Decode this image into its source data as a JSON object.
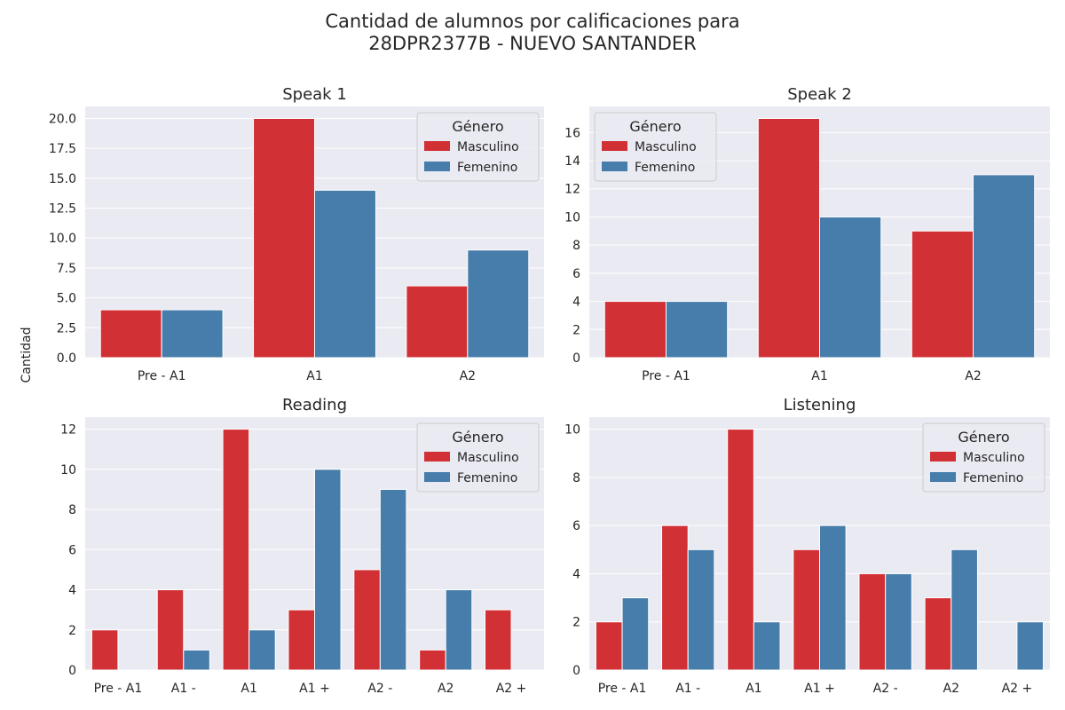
{
  "figure": {
    "title_line1": "Cantidad de alumnos por calificaciones para",
    "title_line2": "28DPR2377B - NUEVO SANTANDER",
    "shared_ylabel": "Cantidad"
  },
  "colors": {
    "Masculino": "#d13034",
    "Femenino": "#467daa",
    "plot_bg": "#eaeaf2",
    "grid": "#ffffff"
  },
  "chart_data": [
    {
      "type": "bar",
      "title": "Speak 1",
      "categories": [
        "Pre - A1",
        "A1",
        "A2"
      ],
      "series": [
        {
          "name": "Masculino",
          "values": [
            4,
            20,
            6
          ]
        },
        {
          "name": "Femenino",
          "values": [
            4,
            14,
            9
          ]
        }
      ],
      "ylim": [
        0,
        21
      ],
      "yticks": [
        "0.0",
        "2.5",
        "5.0",
        "7.5",
        "10.0",
        "12.5",
        "15.0",
        "17.5",
        "20.0"
      ],
      "legend": {
        "title": "Género",
        "placement": "upper right"
      },
      "grid": true
    },
    {
      "type": "bar",
      "title": "Speak 2",
      "categories": [
        "Pre - A1",
        "A1",
        "A2"
      ],
      "series": [
        {
          "name": "Masculino",
          "values": [
            4,
            17,
            9
          ]
        },
        {
          "name": "Femenino",
          "values": [
            4,
            10,
            13
          ]
        }
      ],
      "ylim": [
        0,
        17.85
      ],
      "yticks": [
        "0",
        "2",
        "4",
        "6",
        "8",
        "10",
        "12",
        "14",
        "16"
      ],
      "legend": {
        "title": "Género",
        "placement": "upper left"
      },
      "grid": true
    },
    {
      "type": "bar",
      "title": "Reading",
      "categories": [
        "Pre - A1",
        "A1 -",
        "A1",
        "A1 +",
        "A2 -",
        "A2",
        "A2 +"
      ],
      "series": [
        {
          "name": "Masculino",
          "values": [
            2,
            4,
            12,
            3,
            5,
            1,
            3
          ]
        },
        {
          "name": "Femenino",
          "values": [
            0,
            1,
            2,
            10,
            9,
            4,
            0
          ]
        }
      ],
      "ylim": [
        0,
        12.6
      ],
      "yticks": [
        "0",
        "2",
        "4",
        "6",
        "8",
        "10",
        "12"
      ],
      "legend": {
        "title": "Género",
        "placement": "upper right"
      },
      "grid": true
    },
    {
      "type": "bar",
      "title": "Listening",
      "categories": [
        "Pre - A1",
        "A1 -",
        "A1",
        "A1 +",
        "A2 -",
        "A2",
        "A2 +"
      ],
      "series": [
        {
          "name": "Masculino",
          "values": [
            2,
            6,
            10,
            5,
            4,
            3,
            0
          ]
        },
        {
          "name": "Femenino",
          "values": [
            3,
            5,
            2,
            6,
            4,
            5,
            2
          ]
        }
      ],
      "ylim": [
        0,
        10.5
      ],
      "yticks": [
        "0",
        "2",
        "4",
        "6",
        "8",
        "10"
      ],
      "legend": {
        "title": "Género",
        "placement": "upper right"
      },
      "grid": true
    }
  ]
}
